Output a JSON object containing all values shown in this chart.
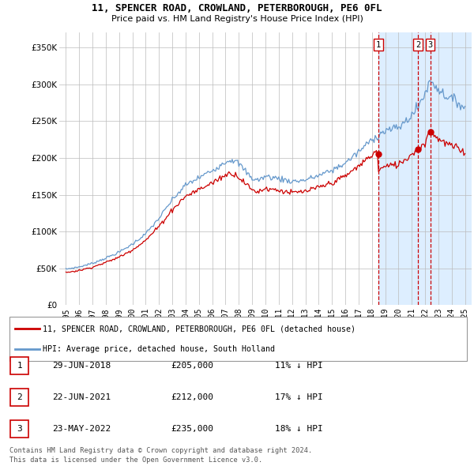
{
  "title": "11, SPENCER ROAD, CROWLAND, PETERBOROUGH, PE6 0FL",
  "subtitle": "Price paid vs. HM Land Registry's House Price Index (HPI)",
  "legend_line1": "11, SPENCER ROAD, CROWLAND, PETERBOROUGH, PE6 0FL (detached house)",
  "legend_line2": "HPI: Average price, detached house, South Holland",
  "hpi_color": "#6699cc",
  "price_color": "#cc0000",
  "dashed_color": "#cc0000",
  "shade_color": "#ddeeff",
  "transactions": [
    {
      "num": 1,
      "date": "29-JUN-2018",
      "date_val": 2018.49,
      "price": 205000,
      "hpi_pct": "11% ↓ HPI"
    },
    {
      "num": 2,
      "date": "22-JUN-2021",
      "date_val": 2021.47,
      "price": 212000,
      "hpi_pct": "17% ↓ HPI"
    },
    {
      "num": 3,
      "date": "23-MAY-2022",
      "date_val": 2022.39,
      "price": 235000,
      "hpi_pct": "18% ↓ HPI"
    }
  ],
  "footnote1": "Contains HM Land Registry data © Crown copyright and database right 2024.",
  "footnote2": "This data is licensed under the Open Government Licence v3.0.",
  "ylim": [
    0,
    370000
  ],
  "yticks": [
    0,
    50000,
    100000,
    150000,
    200000,
    250000,
    300000,
    350000
  ],
  "xlim_start": 1994.5,
  "xlim_end": 2025.5
}
